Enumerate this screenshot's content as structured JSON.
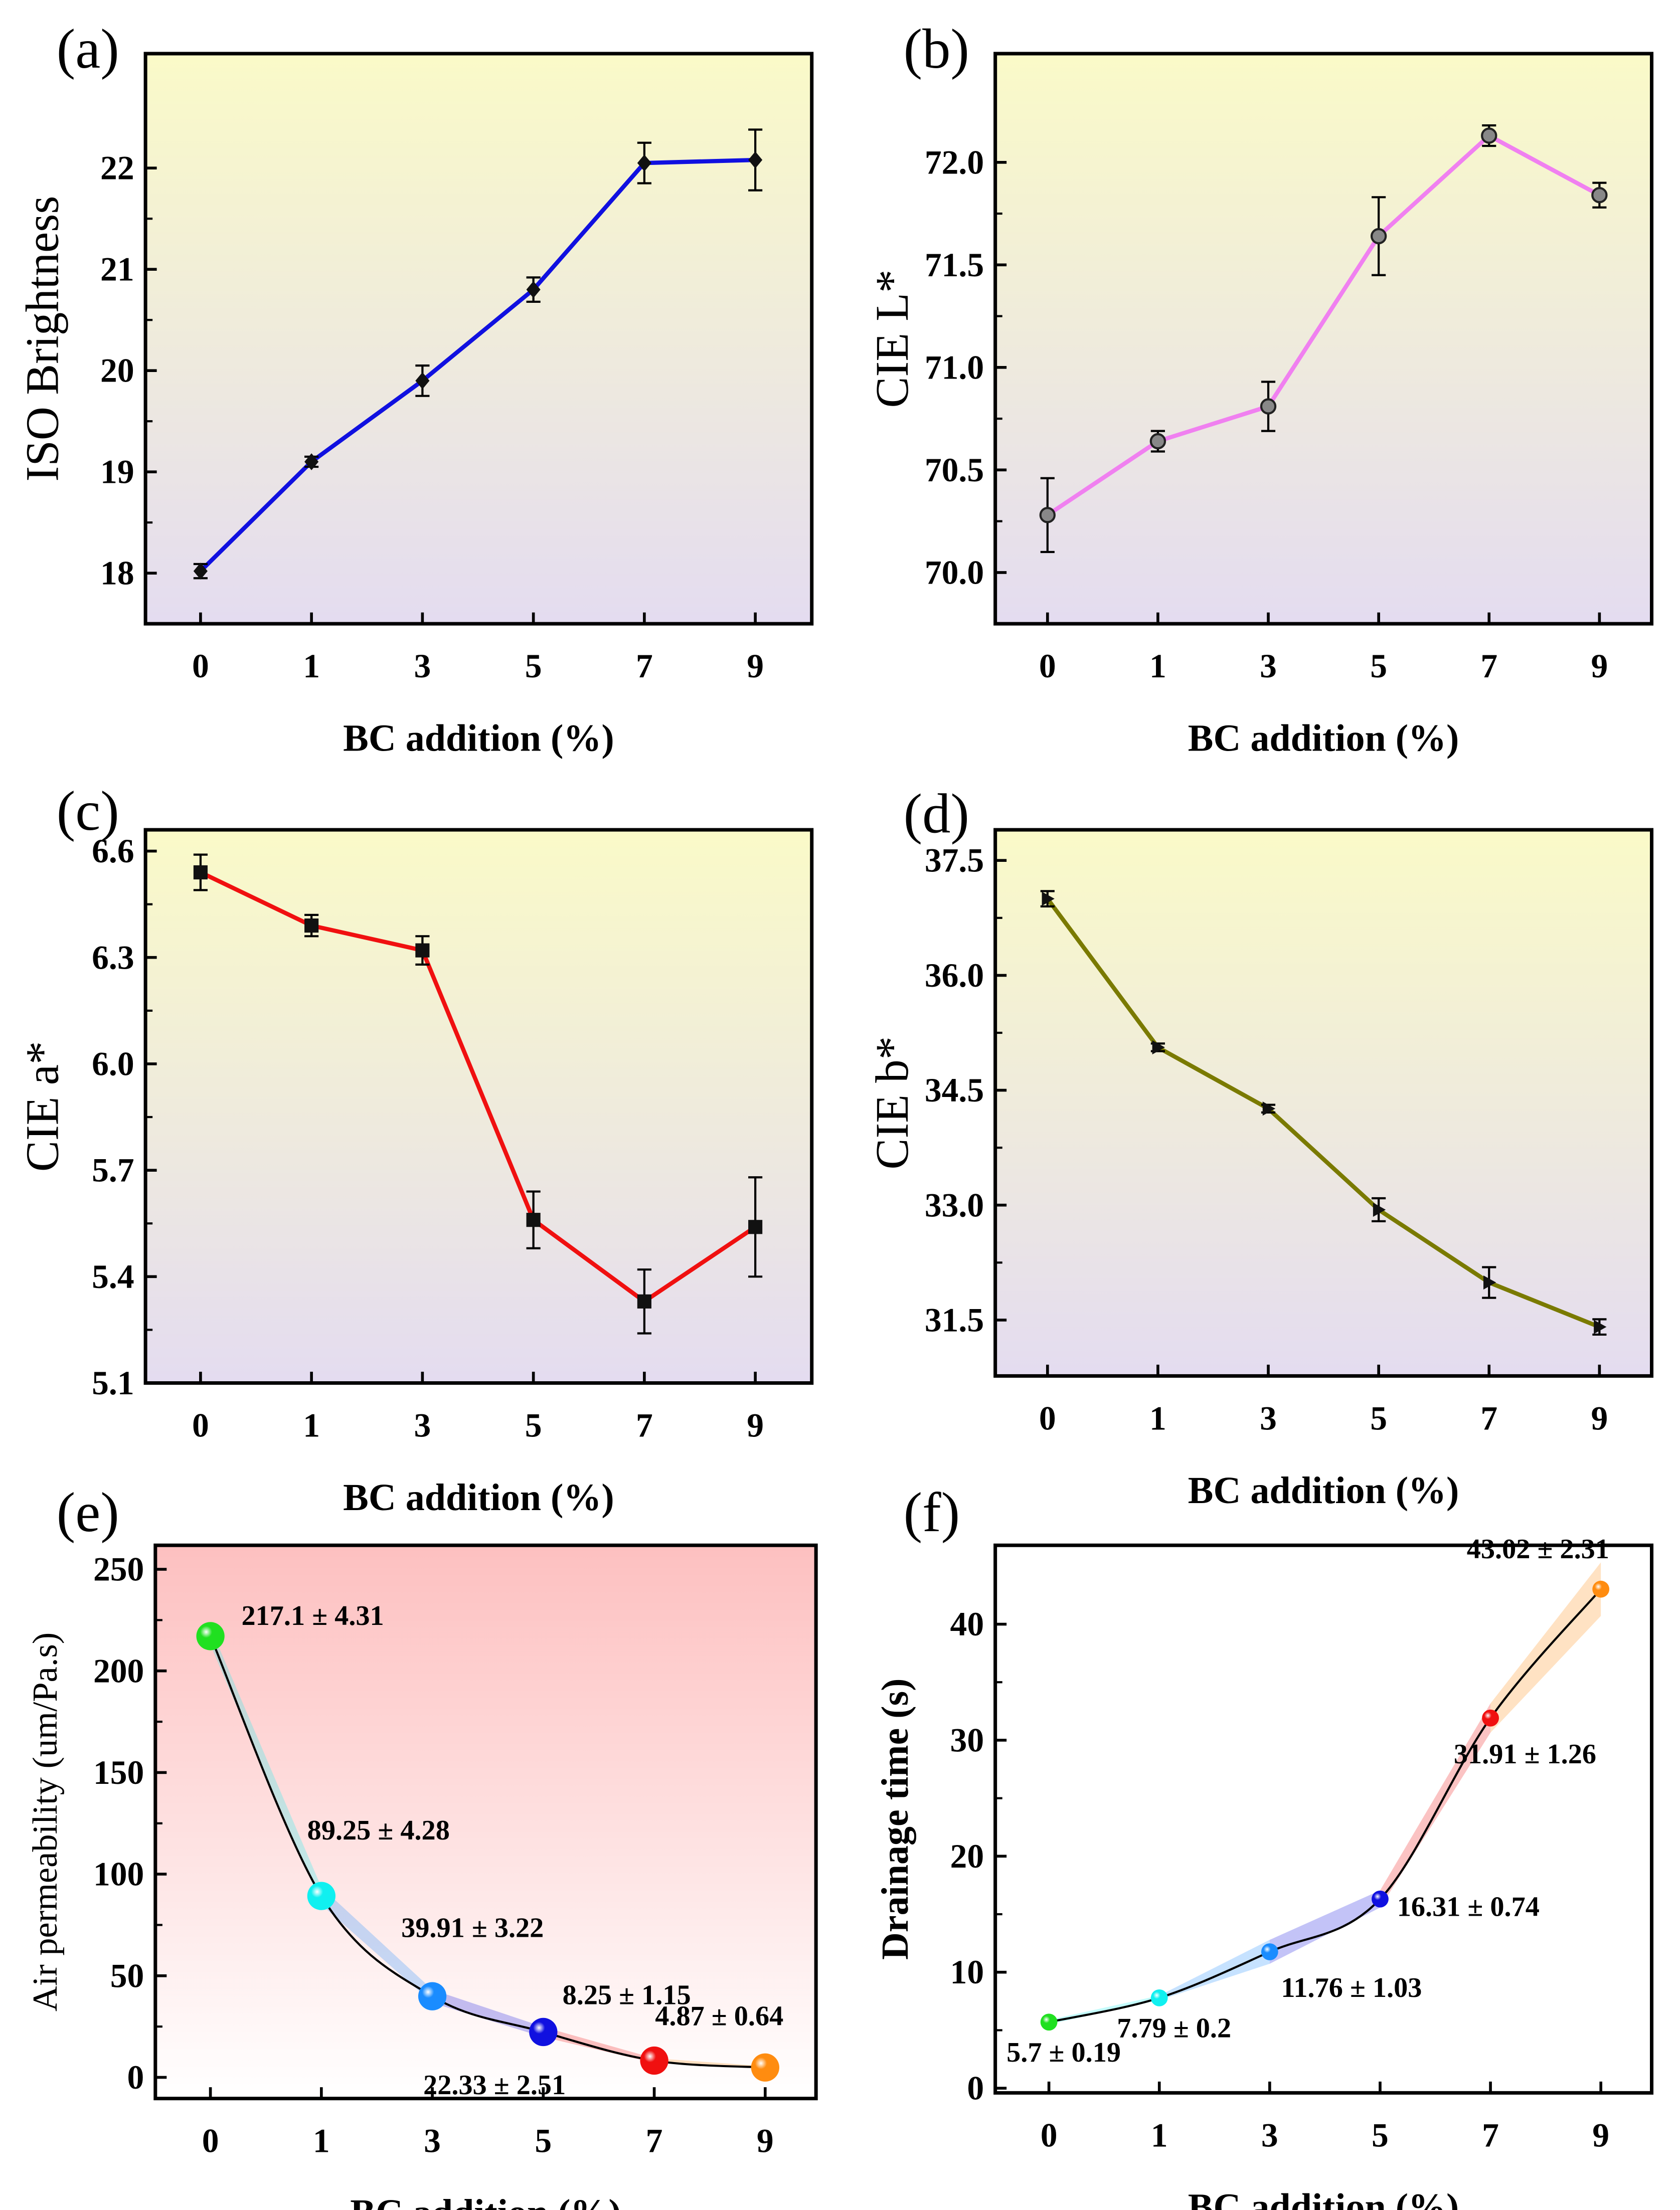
{
  "chart_data": [
    {
      "id": "a",
      "panel_label": "(a)",
      "type": "line",
      "xlabel": "BC addition (%)",
      "ylabel": "ISO Brightness",
      "categories": [
        "0",
        "1",
        "3",
        "5",
        "7",
        "9"
      ],
      "values": [
        18.02,
        19.1,
        19.9,
        20.8,
        22.05,
        22.08
      ],
      "errors": [
        0.07,
        0.05,
        0.15,
        0.12,
        0.2,
        0.3
      ],
      "yticks": [
        18,
        19,
        20,
        21,
        22
      ],
      "ylim": [
        17.5,
        23.13
      ],
      "color": "#1010e0",
      "marker": "diamond",
      "background": [
        "#fafac8",
        "#e4dcf0"
      ]
    },
    {
      "id": "b",
      "panel_label": "(b)",
      "type": "line",
      "xlabel": "BC addition (%)",
      "ylabel": "CIE L*",
      "categories": [
        "0",
        "1",
        "3",
        "5",
        "7",
        "9"
      ],
      "values": [
        70.28,
        70.64,
        70.81,
        71.64,
        72.13,
        71.84
      ],
      "errors": [
        0.18,
        0.05,
        0.12,
        0.19,
        0.05,
        0.06
      ],
      "yticks": [
        "70.0",
        "70.5",
        "71.0",
        "71.5",
        "72.0"
      ],
      "ylim": [
        69.75,
        72.53
      ],
      "color": "#f080f0",
      "marker": "circle",
      "background": [
        "#fafac8",
        "#e4dcf0"
      ]
    },
    {
      "id": "c",
      "panel_label": "(c)",
      "type": "line",
      "xlabel": "BC addition (%)",
      "ylabel": "CIE a*",
      "categories": [
        "0",
        "1",
        "3",
        "5",
        "7",
        "9"
      ],
      "values": [
        6.54,
        6.39,
        6.32,
        5.56,
        5.33,
        5.54
      ],
      "errors": [
        0.05,
        0.03,
        0.04,
        0.08,
        0.09,
        0.14
      ],
      "yticks": [
        "5.1",
        "5.4",
        "5.7",
        "6.0",
        "6.3",
        "6.6"
      ],
      "ylim": [
        5.1,
        6.66
      ],
      "color": "#f01010",
      "marker": "square",
      "background": [
        "#fafac8",
        "#e4dcf0"
      ]
    },
    {
      "id": "d",
      "panel_label": "(d)",
      "type": "line",
      "xlabel": "BC addition (%)",
      "ylabel": "CIE b*",
      "categories": [
        "0",
        "1",
        "3",
        "5",
        "7",
        "9"
      ],
      "values": [
        37.0,
        35.06,
        34.26,
        32.94,
        31.99,
        31.41
      ],
      "errors": [
        0.1,
        0.05,
        0.05,
        0.15,
        0.2,
        0.1
      ],
      "yticks": [
        "31.5",
        "33.0",
        "34.5",
        "36.0",
        "37.5"
      ],
      "ylim": [
        30.77,
        37.9
      ],
      "color": "#7a7a00",
      "marker": "triangle-right",
      "background": [
        "#fafac8",
        "#e4dcf0"
      ]
    },
    {
      "id": "e",
      "panel_label": "(e)",
      "type": "line",
      "xlabel": "BC addition (%)",
      "ylabel": "Air permeability (um/Pa.s)",
      "categories": [
        "0",
        "1",
        "3",
        "5",
        "7",
        "9"
      ],
      "values": [
        217.1,
        89.25,
        39.91,
        22.33,
        8.25,
        4.87
      ],
      "errors": [
        4.31,
        4.28,
        3.22,
        2.51,
        1.15,
        0.64
      ],
      "annotations": [
        "217.1 ± 4.31",
        "89.25 ± 4.28",
        "39.91 ± 3.22",
        "22.33 ± 2.51",
        "8.25 ± 1.15",
        "4.87 ± 0.64"
      ],
      "point_colors": [
        "#20e020",
        "#10f0f0",
        "#1a8cff",
        "#1010e0",
        "#f01010",
        "#ff8c10"
      ],
      "yticks": [
        "0",
        "50",
        "100",
        "150",
        "200",
        "250"
      ],
      "ylim": [
        -10.4,
        261.8
      ],
      "color": "#000000",
      "marker": "sphere",
      "background": [
        "#fdc0c0",
        "#ffffff"
      ]
    },
    {
      "id": "f",
      "panel_label": "(f)",
      "type": "line",
      "xlabel": "BC addition (%)",
      "ylabel": "Drainage time (s)",
      "categories": [
        "0",
        "1",
        "3",
        "5",
        "7",
        "9"
      ],
      "values": [
        5.7,
        7.79,
        11.76,
        16.31,
        31.91,
        43.02
      ],
      "errors": [
        0.19,
        0.2,
        1.03,
        0.74,
        1.26,
        2.31
      ],
      "annotations": [
        "5.7 ± 0.19",
        "7.79 ± 0.2",
        "11.76 ± 1.03",
        "16.31 ± 0.74",
        "31.91 ± 1.26",
        "43.02 ± 2.31"
      ],
      "point_colors": [
        "#20e020",
        "#10f0f0",
        "#1a8cff",
        "#1010e0",
        "#f01010",
        "#ff8c10"
      ],
      "yticks": [
        "0",
        "10",
        "20",
        "30",
        "40"
      ],
      "ylim": [
        -0.4,
        46.8
      ],
      "color": "#000000",
      "marker": "sphere",
      "background": [
        "#ffffff",
        "#ffffff"
      ]
    }
  ]
}
